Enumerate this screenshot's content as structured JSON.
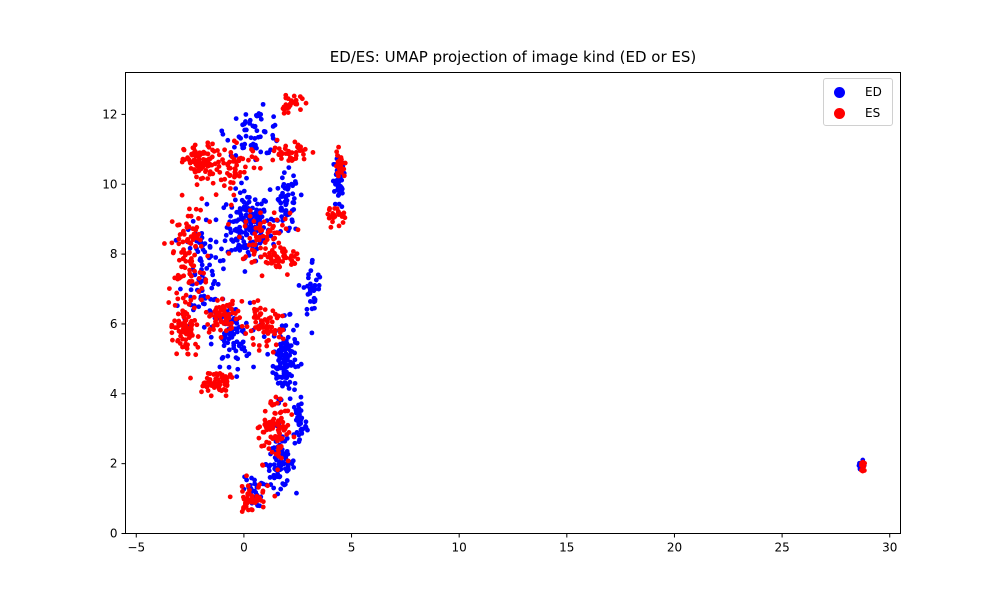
{
  "chart_data": {
    "type": "scatter",
    "title": "ED/ES: UMAP projection of image kind (ED or ES)",
    "xlabel": "",
    "ylabel": "",
    "xlim": [
      -5.5,
      30.5
    ],
    "ylim": [
      0,
      13.2
    ],
    "xticks": [
      -5,
      0,
      5,
      10,
      15,
      20,
      25,
      30
    ],
    "yticks": [
      0,
      2,
      4,
      6,
      8,
      10,
      12
    ],
    "grid": false,
    "legend": "top-right",
    "series": [
      {
        "name": "ED",
        "color": "#0000ff",
        "clusters": [
          {
            "cx": 0.2,
            "cy": 8.8,
            "sx": 0.9,
            "sy": 0.9,
            "n": 160
          },
          {
            "cx": 1.9,
            "cy": 5.0,
            "sx": 0.5,
            "sy": 1.0,
            "n": 120
          },
          {
            "cx": 1.7,
            "cy": 2.0,
            "sx": 0.6,
            "sy": 0.6,
            "n": 90
          },
          {
            "cx": 4.4,
            "cy": 10.0,
            "sx": 0.3,
            "sy": 0.7,
            "n": 40
          },
          {
            "cx": 2.0,
            "cy": 9.4,
            "sx": 0.5,
            "sy": 0.8,
            "n": 60
          },
          {
            "cx": 0.5,
            "cy": 11.5,
            "sx": 1.2,
            "sy": 0.6,
            "n": 60
          },
          {
            "cx": -0.6,
            "cy": 5.6,
            "sx": 0.8,
            "sy": 0.9,
            "n": 80
          },
          {
            "cx": 2.6,
            "cy": 3.2,
            "sx": 0.3,
            "sy": 0.7,
            "n": 40
          },
          {
            "cx": 3.2,
            "cy": 7.0,
            "sx": 0.4,
            "sy": 0.8,
            "n": 35
          },
          {
            "cx": -2.0,
            "cy": 7.5,
            "sx": 0.8,
            "sy": 1.5,
            "n": 90
          },
          {
            "cx": 0.4,
            "cy": 1.2,
            "sx": 0.4,
            "sy": 0.4,
            "n": 30
          },
          {
            "cx": 28.7,
            "cy": 1.95,
            "sx": 0.12,
            "sy": 0.2,
            "n": 12
          }
        ]
      },
      {
        "name": "ES",
        "color": "#ff0000",
        "clusters": [
          {
            "cx": -2.0,
            "cy": 10.6,
            "sx": 0.7,
            "sy": 0.5,
            "n": 90
          },
          {
            "cx": -2.6,
            "cy": 8.0,
            "sx": 0.7,
            "sy": 1.4,
            "n": 100
          },
          {
            "cx": -2.8,
            "cy": 5.8,
            "sx": 0.6,
            "sy": 0.6,
            "n": 70
          },
          {
            "cx": -1.2,
            "cy": 4.3,
            "sx": 0.7,
            "sy": 0.3,
            "n": 60
          },
          {
            "cx": -1.0,
            "cy": 6.2,
            "sx": 0.9,
            "sy": 0.5,
            "n": 70
          },
          {
            "cx": 1.5,
            "cy": 3.0,
            "sx": 0.6,
            "sy": 0.8,
            "n": 90
          },
          {
            "cx": 0.3,
            "cy": 1.0,
            "sx": 0.8,
            "sy": 0.4,
            "n": 50
          },
          {
            "cx": 2.2,
            "cy": 12.3,
            "sx": 0.5,
            "sy": 0.2,
            "n": 30
          },
          {
            "cx": 2.2,
            "cy": 10.9,
            "sx": 0.7,
            "sy": 0.3,
            "n": 40
          },
          {
            "cx": 4.3,
            "cy": 9.1,
            "sx": 0.4,
            "sy": 0.2,
            "n": 25
          },
          {
            "cx": 4.5,
            "cy": 10.6,
            "sx": 0.25,
            "sy": 0.4,
            "n": 25
          },
          {
            "cx": 1.5,
            "cy": 7.8,
            "sx": 1.2,
            "sy": 0.3,
            "n": 50
          },
          {
            "cx": 0.9,
            "cy": 5.9,
            "sx": 0.8,
            "sy": 0.5,
            "n": 60
          },
          {
            "cx": -0.4,
            "cy": 10.5,
            "sx": 1.0,
            "sy": 0.6,
            "n": 60
          },
          {
            "cx": 1.0,
            "cy": 8.6,
            "sx": 1.3,
            "sy": 0.6,
            "n": 60
          },
          {
            "cx": 28.75,
            "cy": 1.9,
            "sx": 0.12,
            "sy": 0.2,
            "n": 16
          }
        ]
      }
    ]
  }
}
